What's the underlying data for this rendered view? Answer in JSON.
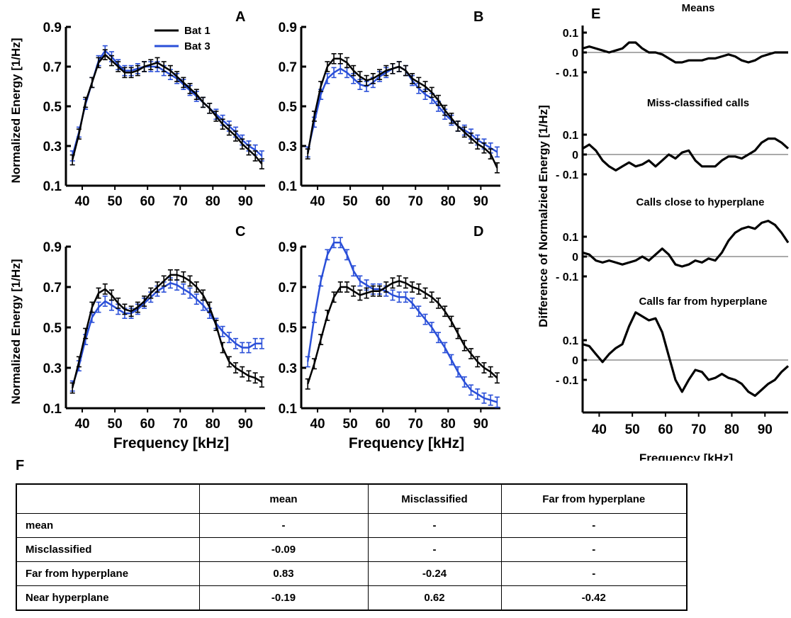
{
  "colors": {
    "bat1": "#000000",
    "bat3": "#2a4fd8"
  },
  "legend": [
    {
      "name": "Bat 1",
      "color": "#000000"
    },
    {
      "name": "Bat 3",
      "color": "#2a4fd8"
    }
  ],
  "chart_data": [
    {
      "id": "A",
      "type": "line",
      "ylabel": "Normalized Energy [1/Hz]",
      "xlabel": "",
      "xlim": [
        35,
        96
      ],
      "ylim": [
        0.1,
        0.9
      ],
      "xticks": [
        40,
        50,
        60,
        70,
        80,
        90
      ],
      "yticks": [
        0.1,
        0.3,
        0.5,
        0.7,
        0.9
      ],
      "yticklabels": [
        "0.1",
        "0.3",
        "0.5",
        "0.7",
        "0.9"
      ],
      "error_bar": 0.025,
      "x": [
        37,
        39,
        41,
        43,
        45,
        47,
        49,
        51,
        53,
        55,
        57,
        59,
        61,
        63,
        65,
        67,
        69,
        71,
        73,
        75,
        77,
        79,
        81,
        83,
        85,
        87,
        89,
        91,
        93,
        95
      ],
      "series": [
        {
          "name": "Bat 1",
          "values": [
            0.23,
            0.36,
            0.52,
            0.62,
            0.72,
            0.76,
            0.73,
            0.7,
            0.67,
            0.67,
            0.68,
            0.7,
            0.71,
            0.72,
            0.7,
            0.68,
            0.65,
            0.62,
            0.59,
            0.56,
            0.52,
            0.49,
            0.45,
            0.41,
            0.38,
            0.35,
            0.31,
            0.28,
            0.25,
            0.21
          ]
        },
        {
          "name": "Bat 3",
          "values": [
            0.25,
            0.37,
            0.51,
            0.62,
            0.73,
            0.78,
            0.75,
            0.71,
            0.68,
            0.68,
            0.69,
            0.7,
            0.7,
            0.7,
            0.68,
            0.66,
            0.64,
            0.61,
            0.58,
            0.55,
            0.52,
            0.49,
            0.46,
            0.43,
            0.4,
            0.37,
            0.33,
            0.3,
            0.28,
            0.25
          ]
        }
      ]
    },
    {
      "id": "B",
      "type": "line",
      "ylabel": "",
      "xlabel": "",
      "xlim": [
        35,
        96
      ],
      "ylim": [
        0.1,
        0.9
      ],
      "xticks": [
        40,
        50,
        60,
        70,
        80,
        90
      ],
      "yticks": [
        0.1,
        0.3,
        0.5,
        0.7,
        0.9
      ],
      "yticklabels": [
        "0.1",
        "0.3",
        "0.5",
        "0.7",
        "0.9"
      ],
      "error_bar": 0.025,
      "x": [
        37,
        39,
        41,
        43,
        45,
        47,
        49,
        51,
        53,
        55,
        57,
        59,
        61,
        63,
        65,
        67,
        69,
        71,
        73,
        75,
        77,
        79,
        81,
        83,
        85,
        87,
        89,
        91,
        93,
        95
      ],
      "series": [
        {
          "name": "Bat 1",
          "values": [
            0.26,
            0.45,
            0.6,
            0.7,
            0.74,
            0.74,
            0.72,
            0.68,
            0.65,
            0.63,
            0.64,
            0.66,
            0.68,
            0.69,
            0.7,
            0.68,
            0.64,
            0.62,
            0.6,
            0.57,
            0.53,
            0.48,
            0.44,
            0.4,
            0.37,
            0.34,
            0.31,
            0.29,
            0.26,
            0.19
          ]
        },
        {
          "name": "Bat 3",
          "values": [
            0.27,
            0.42,
            0.56,
            0.64,
            0.67,
            0.69,
            0.67,
            0.64,
            0.61,
            0.6,
            0.62,
            0.65,
            0.67,
            0.69,
            0.7,
            0.68,
            0.63,
            0.59,
            0.56,
            0.54,
            0.5,
            0.46,
            0.43,
            0.4,
            0.38,
            0.36,
            0.33,
            0.31,
            0.29,
            0.27
          ]
        }
      ]
    },
    {
      "id": "C",
      "type": "line",
      "ylabel": "Normalized Energy [1/Hz]",
      "xlabel": "Frequency [kHz]",
      "xlim": [
        35,
        96
      ],
      "ylim": [
        0.1,
        0.9
      ],
      "xticks": [
        40,
        50,
        60,
        70,
        80,
        90
      ],
      "yticks": [
        0.1,
        0.3,
        0.5,
        0.7,
        0.9
      ],
      "yticklabels": [
        "0.1",
        "0.3",
        "0.5",
        "0.7",
        "0.9"
      ],
      "error_bar": 0.025,
      "x": [
        37,
        39,
        41,
        43,
        45,
        47,
        49,
        51,
        53,
        55,
        57,
        59,
        61,
        63,
        65,
        67,
        69,
        71,
        73,
        75,
        77,
        79,
        81,
        83,
        85,
        87,
        89,
        91,
        93,
        95
      ],
      "series": [
        {
          "name": "Bat 1",
          "values": [
            0.2,
            0.33,
            0.47,
            0.6,
            0.67,
            0.69,
            0.66,
            0.62,
            0.59,
            0.58,
            0.6,
            0.63,
            0.67,
            0.7,
            0.73,
            0.76,
            0.76,
            0.75,
            0.73,
            0.7,
            0.66,
            0.6,
            0.51,
            0.4,
            0.33,
            0.3,
            0.28,
            0.26,
            0.25,
            0.23
          ]
        },
        {
          "name": "Bat 3",
          "values": [
            0.21,
            0.31,
            0.44,
            0.55,
            0.6,
            0.63,
            0.61,
            0.59,
            0.57,
            0.57,
            0.59,
            0.62,
            0.65,
            0.68,
            0.7,
            0.72,
            0.71,
            0.69,
            0.67,
            0.64,
            0.61,
            0.57,
            0.52,
            0.48,
            0.45,
            0.42,
            0.4,
            0.4,
            0.42,
            0.42
          ]
        }
      ]
    },
    {
      "id": "D",
      "type": "line",
      "ylabel": "",
      "xlabel": "Frequency [kHz]",
      "xlim": [
        35,
        96
      ],
      "ylim": [
        0.1,
        0.9
      ],
      "xticks": [
        40,
        50,
        60,
        70,
        80,
        90
      ],
      "yticks": [
        0.1,
        0.3,
        0.5,
        0.7,
        0.9
      ],
      "yticklabels": [
        "0.1",
        "0.3",
        "0.5",
        "0.7",
        "0.9"
      ],
      "error_bar": 0.025,
      "x": [
        37,
        39,
        41,
        43,
        45,
        47,
        49,
        51,
        53,
        55,
        57,
        59,
        61,
        63,
        65,
        67,
        69,
        71,
        73,
        75,
        77,
        79,
        81,
        83,
        85,
        87,
        89,
        91,
        93,
        95
      ],
      "series": [
        {
          "name": "Bat 1",
          "values": [
            0.22,
            0.32,
            0.44,
            0.56,
            0.65,
            0.7,
            0.7,
            0.68,
            0.66,
            0.67,
            0.68,
            0.68,
            0.7,
            0.72,
            0.73,
            0.72,
            0.7,
            0.69,
            0.67,
            0.65,
            0.62,
            0.58,
            0.53,
            0.47,
            0.41,
            0.37,
            0.33,
            0.3,
            0.28,
            0.25
          ]
        },
        {
          "name": "Bat 3",
          "values": [
            0.33,
            0.55,
            0.73,
            0.86,
            0.92,
            0.92,
            0.86,
            0.78,
            0.73,
            0.71,
            0.69,
            0.69,
            0.68,
            0.66,
            0.65,
            0.65,
            0.62,
            0.58,
            0.54,
            0.5,
            0.45,
            0.4,
            0.34,
            0.28,
            0.23,
            0.19,
            0.17,
            0.15,
            0.14,
            0.13
          ]
        }
      ]
    },
    {
      "id": "E",
      "type": "line",
      "ylabel": "Difference of Normalzied Energy [1/Hz]",
      "xlabel": "Frequency [kHz]",
      "xlim": [
        35,
        97
      ],
      "xticks": [
        40,
        50,
        60,
        70,
        80,
        90
      ],
      "yticklabels": [
        "0.1",
        "0",
        "- 0.1"
      ],
      "subplots": [
        {
          "title": "Means",
          "x": [
            35,
            37,
            39,
            41,
            43,
            45,
            47,
            49,
            51,
            53,
            55,
            57,
            59,
            61,
            63,
            65,
            67,
            69,
            71,
            73,
            75,
            77,
            79,
            81,
            83,
            85,
            87,
            89,
            91,
            93,
            95,
            97
          ],
          "values": [
            0.02,
            0.03,
            0.02,
            0.01,
            0.0,
            0.01,
            0.02,
            0.05,
            0.05,
            0.02,
            0.0,
            0.0,
            -0.01,
            -0.03,
            -0.05,
            -0.05,
            -0.04,
            -0.04,
            -0.04,
            -0.03,
            -0.03,
            -0.02,
            -0.01,
            -0.02,
            -0.04,
            -0.05,
            -0.04,
            -0.02,
            -0.01,
            0.0,
            0.0,
            0.0
          ]
        },
        {
          "title": "Miss-classified calls",
          "x": [
            35,
            37,
            39,
            41,
            43,
            45,
            47,
            49,
            51,
            53,
            55,
            57,
            59,
            61,
            63,
            65,
            67,
            69,
            71,
            73,
            75,
            77,
            79,
            81,
            83,
            85,
            87,
            89,
            91,
            93,
            95,
            97
          ],
          "values": [
            0.03,
            0.05,
            0.02,
            -0.03,
            -0.06,
            -0.08,
            -0.06,
            -0.04,
            -0.06,
            -0.05,
            -0.03,
            -0.06,
            -0.03,
            0.0,
            -0.02,
            0.01,
            0.02,
            -0.03,
            -0.06,
            -0.06,
            -0.06,
            -0.03,
            -0.01,
            -0.01,
            -0.02,
            0.0,
            0.02,
            0.06,
            0.08,
            0.08,
            0.06,
            0.03
          ]
        },
        {
          "title": "Calls close to hyperplane",
          "x": [
            35,
            37,
            39,
            41,
            43,
            45,
            47,
            49,
            51,
            53,
            55,
            57,
            59,
            61,
            63,
            65,
            67,
            69,
            71,
            73,
            75,
            77,
            79,
            81,
            83,
            85,
            87,
            89,
            91,
            93,
            95,
            97
          ],
          "values": [
            0.02,
            0.01,
            -0.02,
            -0.03,
            -0.02,
            -0.03,
            -0.04,
            -0.03,
            -0.02,
            0.0,
            -0.02,
            0.01,
            0.04,
            0.01,
            -0.04,
            -0.05,
            -0.04,
            -0.02,
            -0.03,
            -0.01,
            -0.02,
            0.02,
            0.08,
            0.12,
            0.14,
            0.15,
            0.14,
            0.17,
            0.18,
            0.16,
            0.12,
            0.07
          ]
        },
        {
          "title": "Calls far from hyperplane",
          "x": [
            35,
            37,
            39,
            41,
            43,
            45,
            47,
            49,
            51,
            53,
            55,
            57,
            59,
            61,
            63,
            65,
            67,
            69,
            71,
            73,
            75,
            77,
            79,
            81,
            83,
            85,
            87,
            89,
            91,
            93,
            95,
            97
          ],
          "values": [
            0.08,
            0.07,
            0.03,
            -0.01,
            0.03,
            0.06,
            0.08,
            0.17,
            0.24,
            0.22,
            0.2,
            0.21,
            0.14,
            0.02,
            -0.1,
            -0.16,
            -0.1,
            -0.05,
            -0.06,
            -0.1,
            -0.09,
            -0.07,
            -0.09,
            -0.1,
            -0.12,
            -0.16,
            -0.18,
            -0.15,
            -0.12,
            -0.1,
            -0.06,
            -0.03
          ]
        }
      ]
    }
  ],
  "table": {
    "label": "F",
    "columns": [
      "",
      "mean",
      "Misclassified",
      "Far from hyperplane"
    ],
    "rows": [
      {
        "label": "mean",
        "values": [
          "-",
          "-",
          "-"
        ]
      },
      {
        "label": "Misclassified",
        "values": [
          "-0.09",
          "-",
          "-"
        ]
      },
      {
        "label": "Far from hyperplane",
        "values": [
          "0.83",
          "-0.24",
          "-"
        ]
      },
      {
        "label": "Near hyperplane",
        "values": [
          "-0.19",
          "0.62",
          "-0.42"
        ]
      }
    ]
  }
}
